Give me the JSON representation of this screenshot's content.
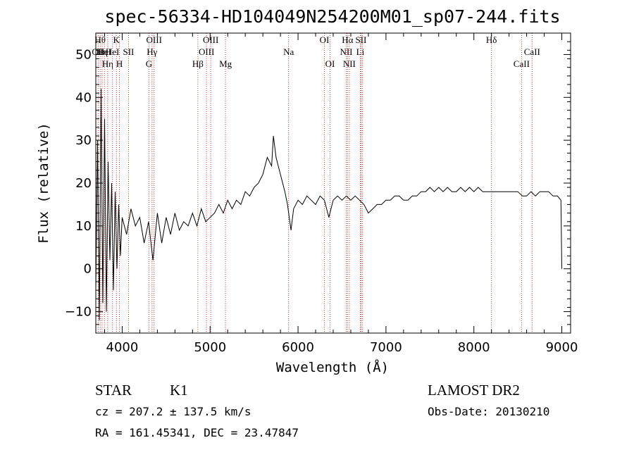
{
  "chart_data": {
    "type": "line",
    "title": "spec-56334-HD104049N254200M01_sp07-244.fits",
    "xlabel": "Wavelength (Å)",
    "ylabel": "Flux (relative)",
    "xlim": [
      3700,
      9100
    ],
    "ylim": [
      -15,
      55
    ],
    "xticks": [
      4000,
      5000,
      6000,
      7000,
      8000,
      9000
    ],
    "yticks": [
      -10,
      0,
      10,
      20,
      30,
      40,
      50
    ],
    "grid": false,
    "series": [
      {
        "x": [
          3700,
          3720,
          3740,
          3760,
          3780,
          3800,
          3820,
          3840,
          3860,
          3880,
          3900,
          3920,
          3940,
          3960,
          3980,
          4000,
          4050,
          4100,
          4150,
          4200,
          4250,
          4300,
          4350,
          4400,
          4450,
          4500,
          4550,
          4600,
          4650,
          4700,
          4750,
          4800,
          4850,
          4900,
          4950,
          5000,
          5050,
          5100,
          5150,
          5200,
          5250,
          5300,
          5350,
          5400,
          5450,
          5500,
          5550,
          5600,
          5650,
          5700,
          5720,
          5750,
          5800,
          5850,
          5880,
          5900,
          5920,
          5950,
          6000,
          6050,
          6100,
          6150,
          6200,
          6250,
          6300,
          6350,
          6400,
          6450,
          6500,
          6550,
          6600,
          6650,
          6700,
          6750,
          6800,
          6850,
          6900,
          6950,
          7000,
          7050,
          7100,
          7150,
          7200,
          7250,
          7300,
          7350,
          7400,
          7450,
          7500,
          7550,
          7600,
          7650,
          7700,
          7750,
          7800,
          7850,
          7900,
          7950,
          8000,
          8050,
          8100,
          8150,
          8200,
          8250,
          8300,
          8350,
          8400,
          8450,
          8500,
          8550,
          8600,
          8650,
          8700,
          8750,
          8800,
          8850,
          8900,
          8950,
          8990,
          9000
        ],
        "y": [
          -5,
          30,
          -12,
          42,
          -8,
          35,
          -10,
          25,
          2,
          20,
          -5,
          18,
          0,
          15,
          3,
          12,
          8,
          14,
          10,
          12,
          6,
          11,
          2,
          13,
          6,
          12,
          8,
          13,
          9,
          11,
          10,
          13,
          10,
          14,
          11,
          12,
          13,
          15,
          13,
          16,
          14,
          16,
          15,
          18,
          17,
          19,
          20,
          22,
          26,
          24,
          31,
          26,
          22,
          18,
          15,
          12,
          9,
          14,
          16,
          15,
          17,
          16,
          15,
          17,
          16,
          12,
          16,
          17,
          16,
          17,
          16,
          17,
          16,
          15,
          13,
          14,
          15,
          15,
          16,
          16,
          17,
          17,
          16,
          16,
          17,
          17,
          18,
          18,
          19,
          18,
          19,
          18,
          19,
          18,
          18,
          19,
          18,
          19,
          18,
          19,
          18,
          18,
          18,
          18,
          18,
          18,
          18,
          18,
          18,
          17,
          17,
          18,
          17,
          18,
          18,
          18,
          17,
          17,
          16,
          0
        ]
      }
    ],
    "lines": [
      {
        "x": 3727,
        "label": "OII",
        "row": 1
      },
      {
        "x": 3750,
        "label": "Hθ",
        "row": 0
      },
      {
        "x": 3771,
        "label": "Hη",
        "row": 1
      },
      {
        "x": 3798,
        "label": "HeI",
        "row": 1
      },
      {
        "x": 3835,
        "label": "Hη",
        "row": 2
      },
      {
        "x": 3889,
        "label": "HeI",
        "row": 1
      },
      {
        "x": 3934,
        "label": "K",
        "row": 0
      },
      {
        "x": 3969,
        "label": "H",
        "row": 2
      },
      {
        "x": 4072,
        "label": "SII",
        "row": 1
      },
      {
        "x": 4304,
        "label": "G",
        "row": 2
      },
      {
        "x": 4340,
        "label": "Hγ",
        "row": 1
      },
      {
        "x": 4363,
        "label": "OIII",
        "row": 0
      },
      {
        "x": 4861,
        "label": "Hβ",
        "row": 2
      },
      {
        "x": 4959,
        "label": "OIII",
        "row": 1
      },
      {
        "x": 5007,
        "label": "OIII",
        "row": 0
      },
      {
        "x": 5175,
        "label": "Mg",
        "row": 2
      },
      {
        "x": 5893,
        "label": "Na",
        "row": 1
      },
      {
        "x": 6300,
        "label": "OI",
        "row": 0
      },
      {
        "x": 6364,
        "label": "OI",
        "row": 2
      },
      {
        "x": 6548,
        "label": "NII",
        "row": 1
      },
      {
        "x": 6563,
        "label": "Hα",
        "row": 0
      },
      {
        "x": 6583,
        "label": "NII",
        "row": 2
      },
      {
        "x": 6708,
        "label": "Li",
        "row": 1
      },
      {
        "x": 6716,
        "label": "SII",
        "row": 0
      },
      {
        "x": 6731,
        "label": "",
        "row": 0
      },
      {
        "x": 8200,
        "label": "Hδ",
        "row": 0
      },
      {
        "x": 8542,
        "label": "CaII",
        "row": 2
      },
      {
        "x": 8662,
        "label": "CaII",
        "row": 1
      }
    ]
  },
  "info": {
    "class": "STAR",
    "subclass": "K1",
    "cz": "cz = 207.2 ± 137.5 km/s",
    "radec": "RA = 161.45341, DEC =  23.47847",
    "survey": "LAMOST DR2",
    "obsdate": "Obs-Date: 20130210"
  }
}
